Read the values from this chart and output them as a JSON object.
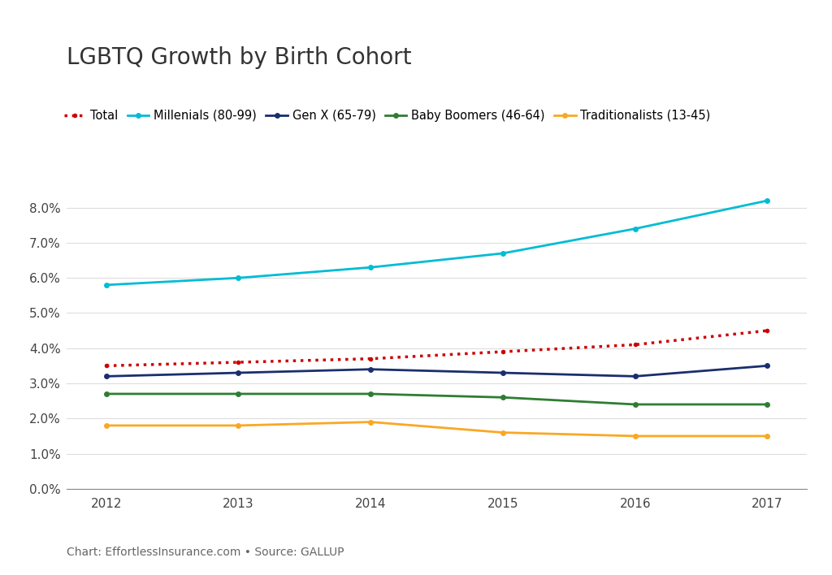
{
  "title": "LGBTQ Growth by Birth Cohort",
  "caption": "Chart: EffortlessInsurance.com • Source: GALLUP",
  "years": [
    2012,
    2013,
    2014,
    2015,
    2016,
    2017
  ],
  "series": {
    "Total": {
      "values": [
        0.035,
        0.036,
        0.037,
        0.039,
        0.041,
        0.045
      ],
      "color": "#cc0000",
      "linestyle": "dotted",
      "linewidth": 2.5,
      "marker": "o",
      "markersize": 4
    },
    "Millenials (80-99)": {
      "values": [
        0.058,
        0.06,
        0.063,
        0.067,
        0.074,
        0.082
      ],
      "color": "#00bcd4",
      "linestyle": "solid",
      "linewidth": 2.0,
      "marker": "o",
      "markersize": 5
    },
    "Gen X (65-79)": {
      "values": [
        0.032,
        0.033,
        0.034,
        0.033,
        0.032,
        0.035
      ],
      "color": "#1a2e6e",
      "linestyle": "solid",
      "linewidth": 2.0,
      "marker": "o",
      "markersize": 5
    },
    "Baby Boomers (46-64)": {
      "values": [
        0.027,
        0.027,
        0.027,
        0.026,
        0.024,
        0.024
      ],
      "color": "#2e7d32",
      "linestyle": "solid",
      "linewidth": 2.0,
      "marker": "o",
      "markersize": 5
    },
    "Traditionalists (13-45)": {
      "values": [
        0.018,
        0.018,
        0.019,
        0.016,
        0.015,
        0.015
      ],
      "color": "#f9a825",
      "linestyle": "solid",
      "linewidth": 2.0,
      "marker": "o",
      "markersize": 5
    }
  },
  "ylim": [
    0.0,
    0.09
  ],
  "yticks": [
    0.0,
    0.01,
    0.02,
    0.03,
    0.04,
    0.05,
    0.06,
    0.07,
    0.08
  ],
  "background_color": "#ffffff",
  "plot_background": "#ffffff",
  "grid_color": "#dddddd",
  "title_fontsize": 20,
  "caption_fontsize": 10,
  "tick_fontsize": 11
}
